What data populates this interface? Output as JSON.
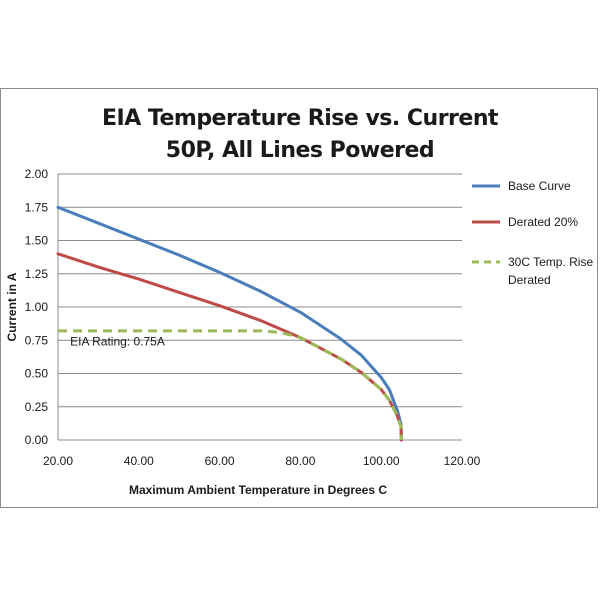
{
  "chart_data": {
    "type": "line",
    "title": "EIA Temperature Rise vs. Current",
    "subtitle": "50P, All Lines Powered",
    "xlabel": "Maximum Ambient Temperature in Degrees C",
    "ylabel": "Current in A",
    "xlim": [
      20,
      120
    ],
    "ylim": [
      0,
      2
    ],
    "x_ticks": [
      "20.00",
      "40.00",
      "60.00",
      "80.00",
      "100.00",
      "120.00"
    ],
    "y_ticks": [
      "0.00",
      "0.25",
      "0.50",
      "0.75",
      "1.00",
      "1.25",
      "1.50",
      "1.75",
      "2.00"
    ],
    "grid": "horizontal",
    "legend_position": "right",
    "series": [
      {
        "name": "Base Curve",
        "color": "#4a7ebb",
        "dash": "solid",
        "x": [
          20,
          30,
          40,
          50,
          60,
          70,
          80,
          90,
          95,
          100,
          102,
          104,
          104.9,
          105
        ],
        "y": [
          1.75,
          1.63,
          1.51,
          1.39,
          1.26,
          1.12,
          0.96,
          0.76,
          0.64,
          0.47,
          0.38,
          0.22,
          0.12,
          0.0
        ]
      },
      {
        "name": "Derated 20%",
        "color": "#be4b48",
        "dash": "solid",
        "x": [
          20,
          30,
          40,
          50,
          60,
          70,
          80,
          90,
          95,
          100,
          102,
          104,
          104.9,
          105
        ],
        "y": [
          1.4,
          1.3,
          1.21,
          1.11,
          1.01,
          0.9,
          0.77,
          0.61,
          0.51,
          0.38,
          0.3,
          0.18,
          0.1,
          0.0
        ]
      },
      {
        "name": "30C Temp. Rise Derated",
        "legend_lines": [
          "30C Temp. Rise",
          "Derated"
        ],
        "color": "#9bbb59",
        "dash": "dashed",
        "x": [
          20,
          30,
          40,
          50,
          60,
          70,
          75,
          80,
          90,
          95,
          100,
          102,
          104,
          104.9,
          105
        ],
        "y": [
          0.82,
          0.82,
          0.82,
          0.82,
          0.82,
          0.82,
          0.81,
          0.77,
          0.61,
          0.51,
          0.38,
          0.3,
          0.18,
          0.1,
          0.0
        ]
      }
    ],
    "annotations": [
      {
        "text": "EIA Rating:  0.75A",
        "x": 23,
        "y": 0.65
      }
    ]
  }
}
